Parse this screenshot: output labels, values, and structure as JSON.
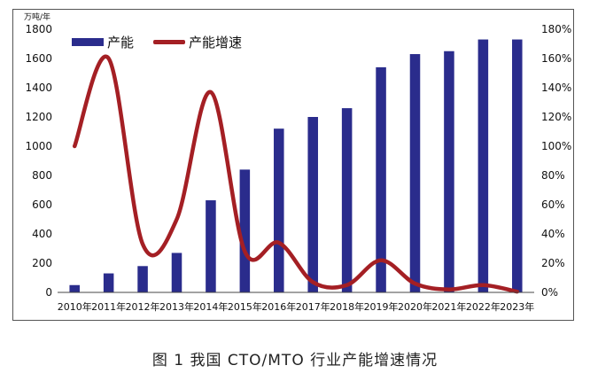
{
  "caption": "图 1  我国 CTO/MTO 行业产能增速情况",
  "colors": {
    "bar": "#2a2c8c",
    "line": "#a41f24"
  },
  "chart_data": {
    "type": "bar+line",
    "unit_label": "万吨/年",
    "categories": [
      "2010年",
      "2011年",
      "2012年",
      "2013年",
      "2014年",
      "2015年",
      "2016年",
      "2017年",
      "2018年",
      "2019年",
      "2020年",
      "2021年",
      "2022年",
      "2023年"
    ],
    "left_axis": {
      "ylim": [
        0,
        1800
      ],
      "ticks": [
        "0",
        "200",
        "400",
        "600",
        "800",
        "1000",
        "1200",
        "1400",
        "1600",
        "1800"
      ]
    },
    "right_axis": {
      "ylim": [
        0,
        180
      ],
      "ticks": [
        "0%",
        "20%",
        "40%",
        "60%",
        "80%",
        "100%",
        "120%",
        "140%",
        "160%",
        "180%"
      ]
    },
    "series": [
      {
        "name": "产能",
        "kind": "bar",
        "axis": "left",
        "values": [
          50,
          130,
          180,
          270,
          630,
          840,
          1120,
          1200,
          1260,
          1540,
          1630,
          1650,
          1730,
          1730
        ]
      },
      {
        "name": "产能增速",
        "kind": "line",
        "axis": "right",
        "values": [
          100,
          160,
          33,
          50,
          137,
          28,
          34,
          7,
          5,
          22,
          6,
          2,
          5,
          0.5
        ]
      }
    ],
    "legend_position": "top-left"
  }
}
